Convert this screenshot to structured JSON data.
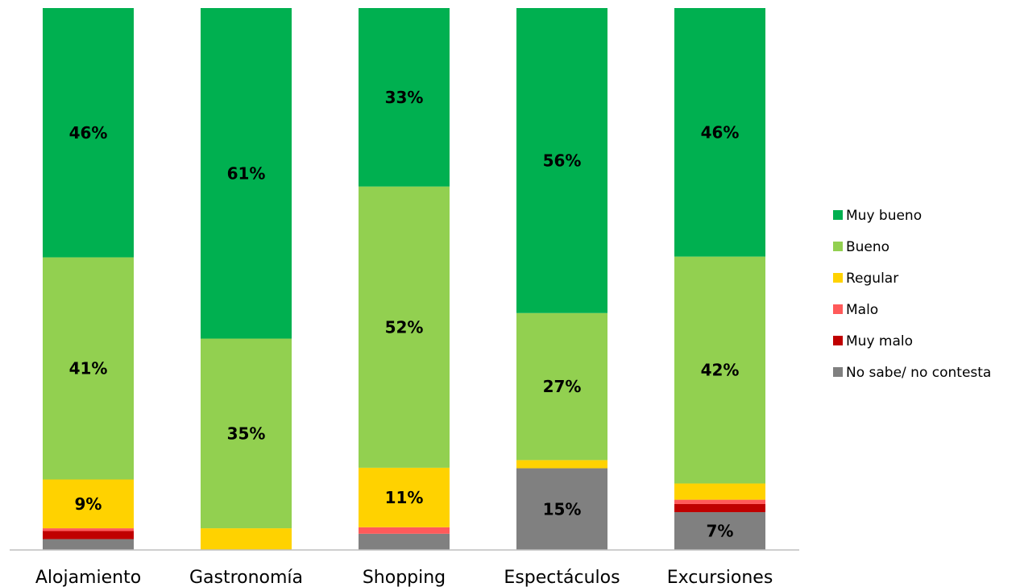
{
  "chart_data": {
    "type": "bar",
    "stacked": true,
    "percent_stacked": true,
    "categories": [
      "Alojamiento",
      "Gastronomía",
      "Shopping",
      "Espectáculos",
      "Excursiones"
    ],
    "series": [
      {
        "name": "No sabe/ no contesta",
        "color": "#808080",
        "values": [
          2,
          0,
          3,
          15,
          7
        ],
        "labels": [
          "",
          "",
          "",
          "15%",
          "7%"
        ]
      },
      {
        "name": "Muy malo",
        "color": "#c00000",
        "values": [
          1.5,
          0,
          0,
          0,
          1.5
        ],
        "labels": [
          "",
          "",
          "",
          "",
          ""
        ]
      },
      {
        "name": "Malo",
        "color": "#ff5a5a",
        "values": [
          0.5,
          0,
          1.2,
          0,
          0.8
        ],
        "labels": [
          "",
          "",
          "",
          "",
          ""
        ]
      },
      {
        "name": "Regular",
        "color": "#ffd200",
        "values": [
          9,
          4,
          11,
          1.5,
          3
        ],
        "labels": [
          "9%",
          "",
          "11%",
          "",
          ""
        ]
      },
      {
        "name": "Bueno",
        "color": "#92d050",
        "values": [
          41,
          35,
          52,
          27,
          42
        ],
        "labels": [
          "41%",
          "35%",
          "52%",
          "27%",
          "42%"
        ]
      },
      {
        "name": "Muy bueno",
        "color": "#00b050",
        "values": [
          46,
          61,
          33,
          56,
          46
        ],
        "labels": [
          "46%",
          "61%",
          "33%",
          "56%",
          "46%"
        ]
      }
    ],
    "legend_order": [
      "Muy bueno",
      "Bueno",
      "Regular",
      "Malo",
      "Muy malo",
      "No sabe/ no contesta"
    ],
    "ylim": [
      0,
      100
    ],
    "grid": false,
    "legend_position": "right"
  }
}
